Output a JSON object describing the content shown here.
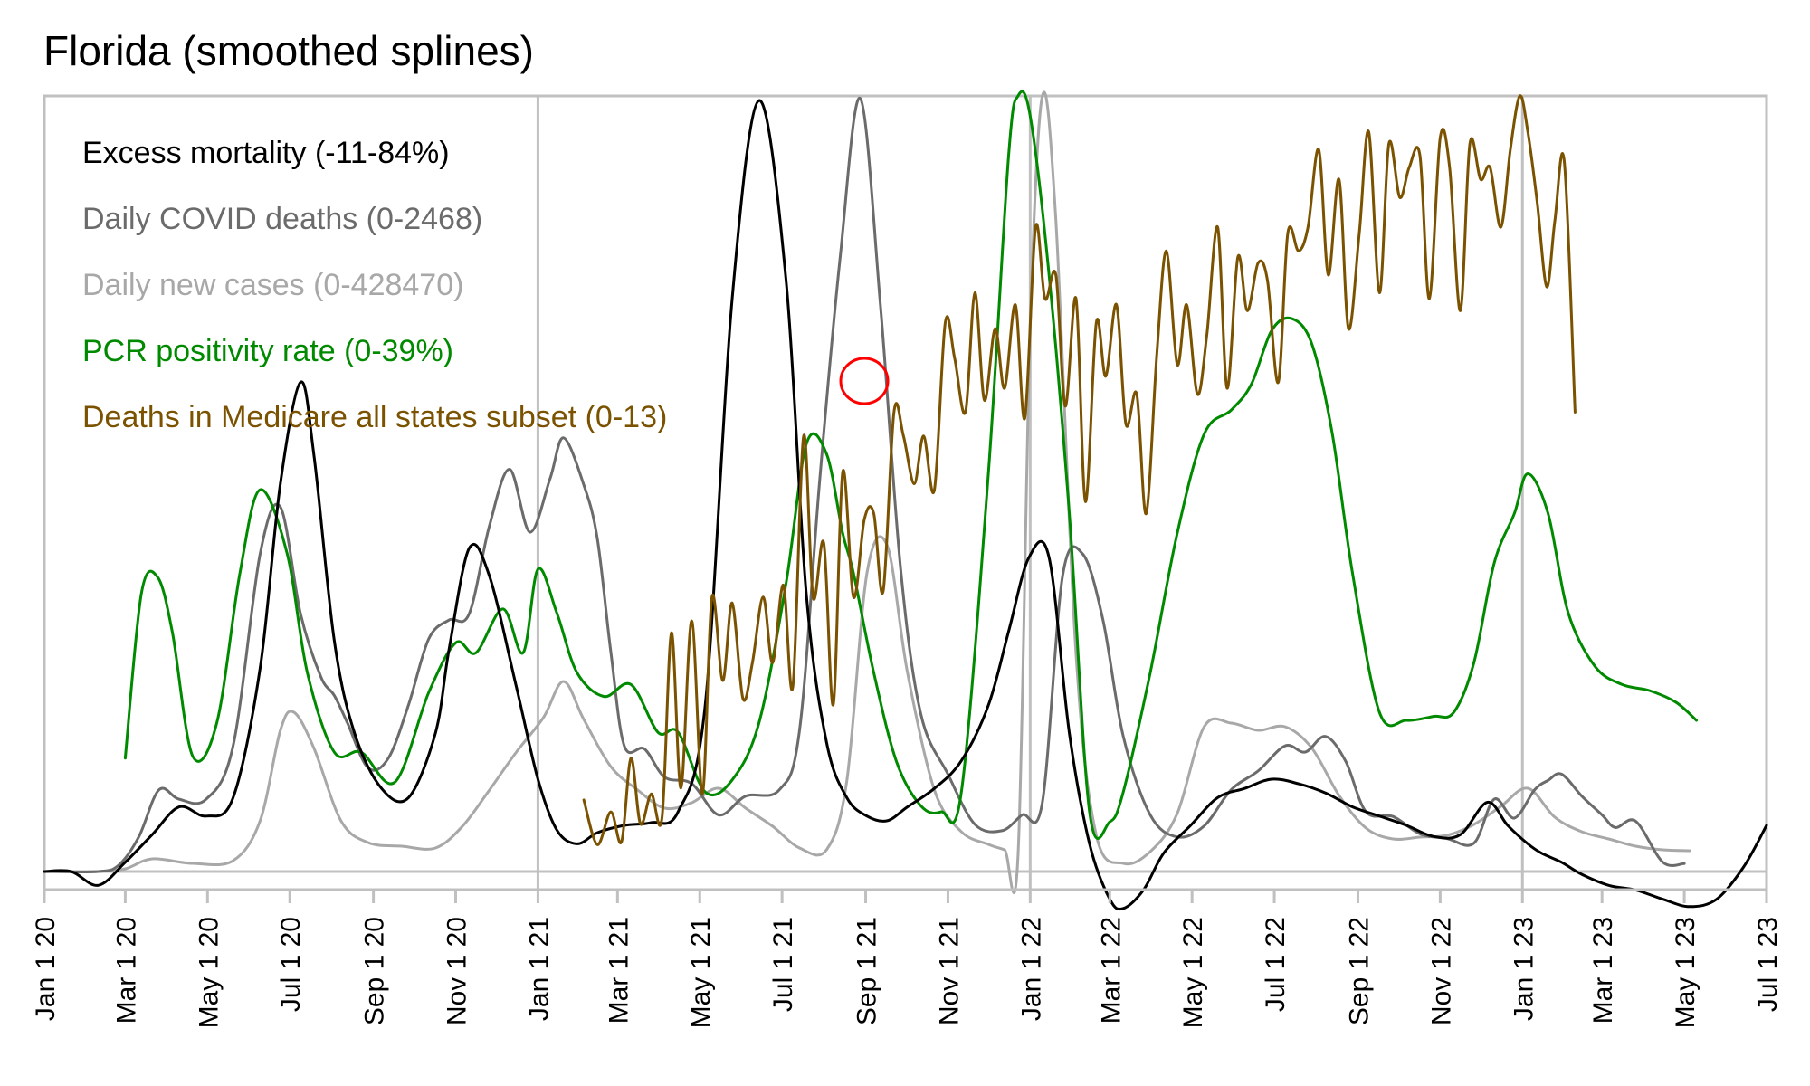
{
  "chart_data": {
    "type": "line",
    "title": "Florida (smoothed splines)",
    "xlabel": "",
    "ylabel": "",
    "x_axis": {
      "type": "date",
      "range": [
        "2020-01-01",
        "2023-07-01"
      ],
      "tick_labels": [
        "Jan 1 20",
        "Mar 1 20",
        "May 1 20",
        "Jul 1 20",
        "Sep 1 20",
        "Nov 1 20",
        "Jan 1 21",
        "Mar 1 21",
        "May 1 21",
        "Jul 1 21",
        "Sep 1 21",
        "Nov 1 21",
        "Jan 1 22",
        "Mar 1 22",
        "May 1 22",
        "Jul 1 22",
        "Sep 1 22",
        "Nov 1 22",
        "Jan 1 23",
        "Mar 1 23",
        "May 1 23",
        "Jul 1 23"
      ],
      "tick_days": [
        0,
        60,
        121,
        182,
        244,
        305,
        366,
        425,
        486,
        547,
        609,
        670,
        731,
        790,
        851,
        912,
        974,
        1035,
        1096,
        1155,
        1216,
        1277
      ],
      "year_gridlines": [
        "Jan 1 21",
        "Jan 1 22",
        "Jan 1 23"
      ]
    },
    "y_axis": {
      "note": "each series independently scaled to its own range",
      "ticks": []
    },
    "grid": "vertical lines at each Jan 1 and a horizontal zero line",
    "legend_placement": "top-left",
    "annotation": {
      "type": "circle",
      "color": "#ff0000",
      "target": "Deaths in Medicare spike near Sep 1 21"
    },
    "series": [
      {
        "name": "Excess mortality (-11-84%)",
        "color": "#000000",
        "range": [
          -11,
          84
        ],
        "unit": "%",
        "x_days": [
          0,
          20,
          40,
          60,
          80,
          100,
          120,
          140,
          160,
          175,
          190,
          200,
          215,
          230,
          250,
          270,
          290,
          300,
          315,
          330,
          350,
          366,
          380,
          395,
          410,
          430,
          450,
          470,
          490,
          510,
          530,
          550,
          565,
          580,
          595,
          610,
          625,
          640,
          660,
          680,
          700,
          715,
          730,
          745,
          760,
          775,
          790,
          800,
          815,
          830,
          850,
          870,
          890,
          910,
          930,
          950,
          970,
          990,
          1010,
          1030,
          1050,
          1070,
          1085,
          1100,
          1110,
          1125,
          1140,
          1160,
          1180,
          1200,
          1220,
          1240,
          1260,
          1277
        ],
        "values": [
          0,
          0,
          -1.5,
          1,
          4,
          7,
          6,
          8,
          22,
          42,
          53,
          45,
          25,
          15,
          9,
          8,
          15,
          24,
          35,
          32,
          20,
          10,
          4.5,
          3,
          4.2,
          5,
          5.3,
          6.5,
          18,
          62,
          83.5,
          64,
          30,
          14,
          8,
          6,
          5.5,
          7,
          9,
          12,
          18,
          26,
          34,
          34,
          15,
          3,
          -3,
          -4,
          -2,
          2,
          5,
          8,
          9,
          10,
          9.5,
          8.5,
          7,
          6,
          5,
          3.8,
          4,
          7.5,
          5,
          3,
          2,
          1,
          -0.3,
          -1.5,
          -2,
          -3,
          -3.8,
          -3,
          0.5,
          5
        ]
      },
      {
        "name": "Daily COVID deaths (0-2468)",
        "color": "#6b6b6b",
        "range": [
          0,
          2468
        ],
        "x_days": [
          0,
          40,
          55,
          70,
          85,
          100,
          120,
          140,
          160,
          175,
          190,
          205,
          215,
          225,
          240,
          255,
          270,
          285,
          300,
          315,
          330,
          345,
          360,
          375,
          385,
          400,
          410,
          420,
          430,
          445,
          460,
          480,
          500,
          520,
          545,
          560,
          575,
          590,
          605,
          620,
          635,
          650,
          670,
          690,
          710,
          725,
          740,
          755,
          770,
          785,
          800,
          820,
          840,
          860,
          880,
          900,
          920,
          935,
          950,
          965,
          980,
          1000,
          1020,
          1040,
          1060,
          1075,
          1090,
          1105,
          1115,
          1125,
          1140,
          1155,
          1165,
          1180,
          1200,
          1216
        ],
        "values": [
          0,
          0,
          20,
          110,
          260,
          230,
          230,
          400,
          1010,
          1160,
          820,
          620,
          560,
          470,
          330,
          360,
          530,
          740,
          800,
          820,
          1100,
          1280,
          1080,
          1250,
          1380,
          1230,
          1060,
          700,
          400,
          390,
          300,
          280,
          180,
          240,
          260,
          450,
          1250,
          1950,
          2460,
          1800,
          960,
          500,
          310,
          150,
          130,
          180,
          220,
          940,
          1010,
          800,
          430,
          180,
          110,
          145,
          260,
          320,
          400,
          380,
          430,
          350,
          190,
          175,
          120,
          105,
          90,
          230,
          170,
          260,
          290,
          310,
          240,
          180,
          140,
          160,
          30,
          25
        ]
      },
      {
        "name": "Daily new cases (0-428470)",
        "color": "#a8a8a8",
        "range": [
          0,
          428470
        ],
        "x_days": [
          0,
          40,
          60,
          80,
          110,
          140,
          160,
          175,
          185,
          200,
          220,
          240,
          265,
          290,
          310,
          330,
          350,
          370,
          385,
          400,
          420,
          440,
          460,
          480,
          500,
          520,
          540,
          560,
          580,
          595,
          610,
          625,
          640,
          660,
          680,
          700,
          712,
          722,
          731,
          740,
          750,
          765,
          780,
          800,
          820,
          840,
          860,
          880,
          900,
          920,
          940,
          960,
          980,
          1000,
          1020,
          1040,
          1060,
          1080,
          1100,
          1120,
          1140,
          1160,
          1180,
          1200,
          1220
        ],
        "values": [
          0,
          0,
          1500,
          7000,
          4500,
          6000,
          28000,
          78000,
          88000,
          68000,
          28000,
          16000,
          14000,
          13000,
          25000,
          45000,
          66000,
          85000,
          105000,
          84000,
          58000,
          45000,
          35000,
          38000,
          46000,
          35000,
          25000,
          13000,
          12000,
          50000,
          165000,
          180000,
          110000,
          45000,
          22000,
          15000,
          12000,
          9000,
          300000,
          428470,
          360000,
          120000,
          20000,
          4500,
          11000,
          32000,
          80000,
          82000,
          78000,
          80000,
          68000,
          42000,
          24000,
          18000,
          19000,
          20000,
          26000,
          36000,
          46000,
          30000,
          22000,
          18000,
          14000,
          12000,
          11500
        ]
      },
      {
        "name": "PCR positivity rate (0-39%)",
        "color": "#008a00",
        "range": [
          0,
          39
        ],
        "x_days": [
          60,
          72,
          84,
          95,
          110,
          128,
          145,
          160,
          180,
          195,
          215,
          235,
          260,
          285,
          305,
          320,
          340,
          355,
          366,
          380,
          395,
          415,
          435,
          455,
          470,
          490,
          510,
          530,
          550,
          565,
          580,
          592,
          600,
          615,
          632,
          650,
          665,
          680,
          700,
          715,
          722,
          731,
          745,
          760,
          775,
          790,
          800,
          820,
          840,
          860,
          880,
          895,
          910,
          925,
          940,
          955,
          970,
          990,
          1010,
          1030,
          1045,
          1060,
          1075,
          1090,
          1100,
          1115,
          1130,
          1150,
          1170,
          1190,
          1210,
          1225
        ],
        "values": [
          5.7,
          14,
          14.8,
          12,
          5.8,
          7.5,
          15,
          19.2,
          16,
          10,
          6,
          6,
          4.5,
          9,
          11.5,
          11,
          13.2,
          11,
          15.2,
          13,
          10,
          8.8,
          9.4,
          7,
          7,
          4,
          4.6,
          7.5,
          14.5,
          21.5,
          21,
          17,
          15,
          10,
          5.5,
          3.3,
          3,
          4,
          20,
          36,
          39,
          38,
          30,
          18,
          3,
          2.5,
          4,
          10,
          17,
          22,
          23.2,
          24.5,
          27.2,
          27.8,
          26.5,
          22,
          15,
          8,
          7.6,
          7.8,
          8,
          10.5,
          15.5,
          18,
          20,
          18,
          13,
          10.3,
          9.4,
          9.1,
          8.5,
          7.6
        ]
      },
      {
        "name": "Deaths in Medicare all states subset (0-13)",
        "color": "#7a5200",
        "range": [
          0,
          13
        ],
        "x_days": [
          400,
          410,
          420,
          428,
          435,
          442,
          450,
          458,
          465,
          472,
          480,
          488,
          495,
          503,
          510,
          518,
          525,
          533,
          540,
          548,
          555,
          563,
          570,
          578,
          585,
          592,
          600,
          608,
          615,
          622,
          630,
          637,
          645,
          652,
          660,
          668,
          675,
          683,
          690,
          697,
          705,
          712,
          720,
          727,
          735,
          742,
          750,
          757,
          765,
          772,
          780,
          787,
          795,
          802,
          810,
          817,
          825,
          832,
          840,
          847,
          855,
          862,
          870,
          877,
          885,
          892,
          900,
          907,
          915,
          922,
          930,
          937,
          945,
          952,
          960,
          967,
          975,
          982,
          990,
          997,
          1005,
          1012,
          1020,
          1027,
          1035,
          1042,
          1050,
          1057,
          1065,
          1072,
          1080,
          1087,
          1094,
          1100,
          1107,
          1114,
          1120,
          1127,
          1135
        ],
        "values": [
          1.2,
          0.45,
          1.0,
          0.5,
          1.9,
          0.8,
          1.3,
          0.9,
          4.0,
          1.4,
          4.2,
          1.3,
          4.6,
          3.2,
          4.5,
          2.9,
          3.5,
          4.6,
          3.5,
          4.8,
          3.1,
          7.3,
          4.6,
          5.5,
          2.8,
          6.7,
          4.6,
          5.9,
          6.0,
          4.7,
          7.7,
          7.3,
          6.5,
          7.3,
          6.4,
          9.2,
          8.6,
          7.7,
          9.7,
          7.9,
          9.1,
          8.1,
          9.5,
          7.6,
          10.8,
          9.6,
          10.0,
          7.8,
          9.6,
          6.2,
          9.2,
          8.3,
          9.5,
          7.5,
          8.0,
          6.0,
          8.7,
          10.4,
          8.5,
          9.5,
          8.0,
          9.0,
          10.8,
          8.1,
          10.3,
          9.4,
          10.2,
          9.9,
          8.2,
          10.7,
          10.4,
          10.8,
          12.1,
          10.0,
          11.6,
          9.1,
          10.7,
          12.4,
          9.7,
          12.2,
          11.3,
          11.8,
          12.0,
          9.6,
          12.3,
          11.8,
          9.4,
          12.2,
          11.6,
          11.8,
          10.8,
          12.1,
          13.0,
          12.4,
          11.2,
          9.8,
          10.9,
          11.9,
          7.7
        ]
      }
    ]
  }
}
